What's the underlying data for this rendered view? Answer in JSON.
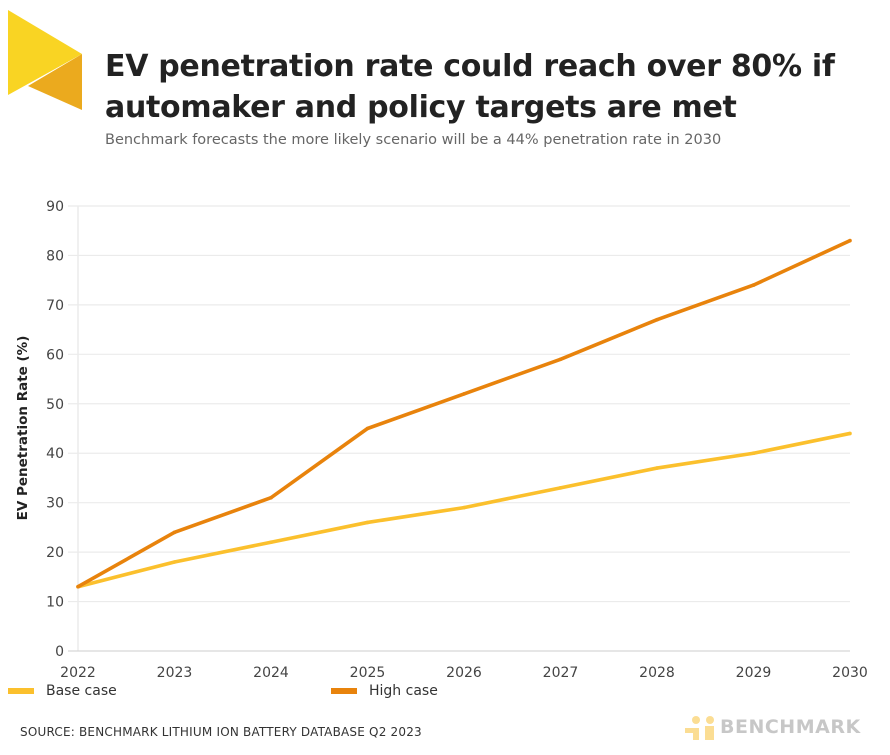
{
  "header": {
    "title": "EV penetration rate could reach over 80% if automaker and policy targets are met",
    "subtitle": "Benchmark forecasts the more likely scenario will be a 44% penetration rate in 2030"
  },
  "footer": {
    "source": "SOURCE: BENCHMARK LITHIUM ION BATTERY DATABASE Q2 2023",
    "brand": "BENCHMARK"
  },
  "colors": {
    "base_case": "#FBC02D",
    "high_case": "#E8830C",
    "logo_light": "#F9D423",
    "logo_dark": "#EBAA1E",
    "grid": "#E8E8E8"
  },
  "chart_data": {
    "type": "line",
    "title": "EV penetration rate could reach over 80% if automaker and policy targets are met",
    "subtitle": "Benchmark forecasts the more likely scenario will be a 44% penetration rate in 2030",
    "xlabel": "",
    "ylabel": "EV Penetration Rate (%)",
    "x": [
      "2022",
      "2023",
      "2024",
      "2025",
      "2026",
      "2027",
      "2028",
      "2029",
      "2030"
    ],
    "ylim": [
      0,
      90
    ],
    "yticks": [
      0,
      10,
      20,
      30,
      40,
      50,
      60,
      70,
      80,
      90
    ],
    "grid": true,
    "legend_position": "bottom",
    "series": [
      {
        "name": "Base case",
        "color": "#FBC02D",
        "values": [
          13,
          18,
          22,
          26,
          29,
          33,
          37,
          40,
          44
        ]
      },
      {
        "name": "High case",
        "color": "#E8830C",
        "values": [
          13,
          24,
          31,
          45,
          52,
          59,
          67,
          74,
          83
        ]
      }
    ]
  }
}
